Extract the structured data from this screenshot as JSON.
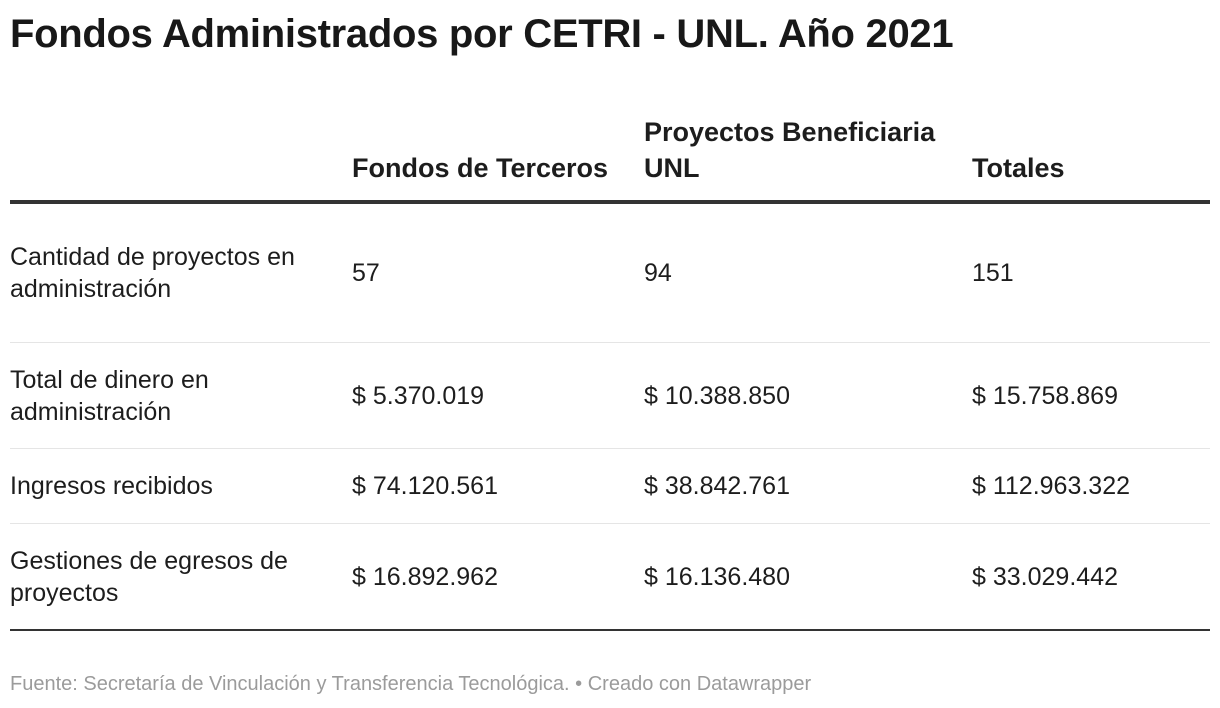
{
  "chart_data": {
    "type": "table",
    "title": "Fondos Administrados por CETRI - UNL. Año 2021",
    "columns": [
      "",
      "Fondos de Terceros",
      "Proyectos Beneficiaria UNL",
      "Totales"
    ],
    "rows": [
      {
        "label": "Cantidad de proyectos en administración",
        "values": [
          "57",
          "94",
          "151"
        ]
      },
      {
        "label": "Total de dinero en administración",
        "values": [
          "$ 5.370.019",
          "$ 10.388.850",
          "$ 15.758.869"
        ]
      },
      {
        "label": "Ingresos recibidos",
        "values": [
          "$ 74.120.561",
          "$ 38.842.761",
          "$ 112.963.322"
        ]
      },
      {
        "label": "Gestiones de egresos de proyectos",
        "values": [
          "$ 16.892.962",
          "$ 16.136.480",
          "$ 33.029.442"
        ]
      }
    ],
    "source": "Fuente: Secretaría de Vinculación y Transferencia Tecnológica.",
    "credit": "Creado con Datawrapper",
    "separator": "•"
  }
}
